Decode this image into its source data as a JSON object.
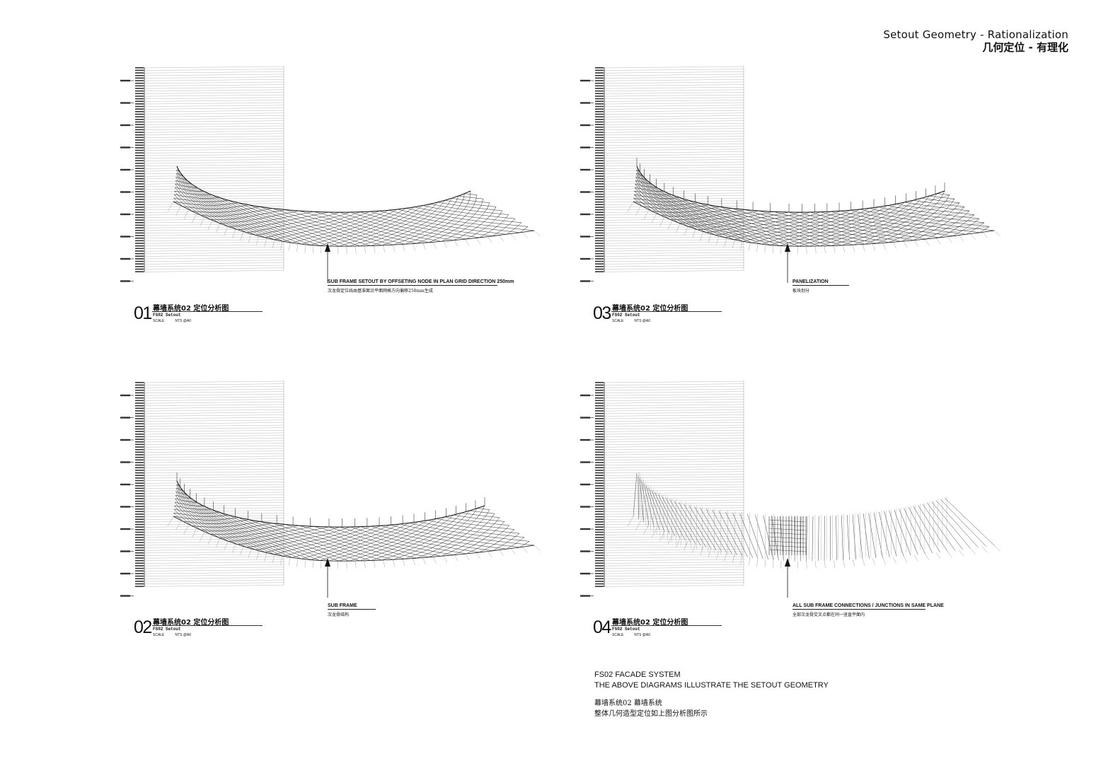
{
  "header": {
    "title_en": "Setout Geometry - Rationalization",
    "title_cn": "几何定位 - 有理化"
  },
  "diagrams": [
    {
      "number": "01",
      "title": "幕墙系统02  定位分析图",
      "subtitle": "FS02 Setout",
      "scale_label": "SCALE",
      "scale_value": "NTS @A0",
      "callout": "SUB FRAME SETOUT BY OFFSETING NODE IN PLAN GRID DIRECTION 250mm",
      "callout_cn": "次龙骨定位线由基准面沿平面网格方向偏移250mm生成"
    },
    {
      "number": "02",
      "title": "幕墙系统02  定位分析图",
      "subtitle": "FS02 Setout",
      "scale_label": "SCALE",
      "scale_value": "NTS @A0",
      "callout": "SUB FRAME",
      "callout_cn": "次龙骨结构"
    },
    {
      "number": "03",
      "title": "幕墙系统02  定位分析图",
      "subtitle": "FS02 Setout",
      "scale_label": "SCALE",
      "scale_value": "NTS @A0",
      "callout": "PANELIZATION",
      "callout_cn": "板块划分"
    },
    {
      "number": "04",
      "title": "幕墙系统02  定位分析图",
      "subtitle": "FS02 Setout",
      "scale_label": "SCALE",
      "scale_value": "NTS @A0",
      "callout": "ALL SUB FRAME CONNECTIONS / JUNCTIONS IN SAME PLANE",
      "callout_cn": "全部次龙骨交叉点都在同一竖直平面内"
    }
  ],
  "footnote": {
    "line1": "FS02 FACADE SYSTEM",
    "line2": "THE ABOVE DIAGRAMS ILLUSTRATE THE SETOUT GEOMETRY",
    "line3": "幕墙系统02  幕墙系统",
    "line4": "整体几何造型定位如上图分析图所示"
  },
  "colors": {
    "ink": "#111111",
    "grid_line": "#9a9a9a",
    "label": "#333333"
  }
}
